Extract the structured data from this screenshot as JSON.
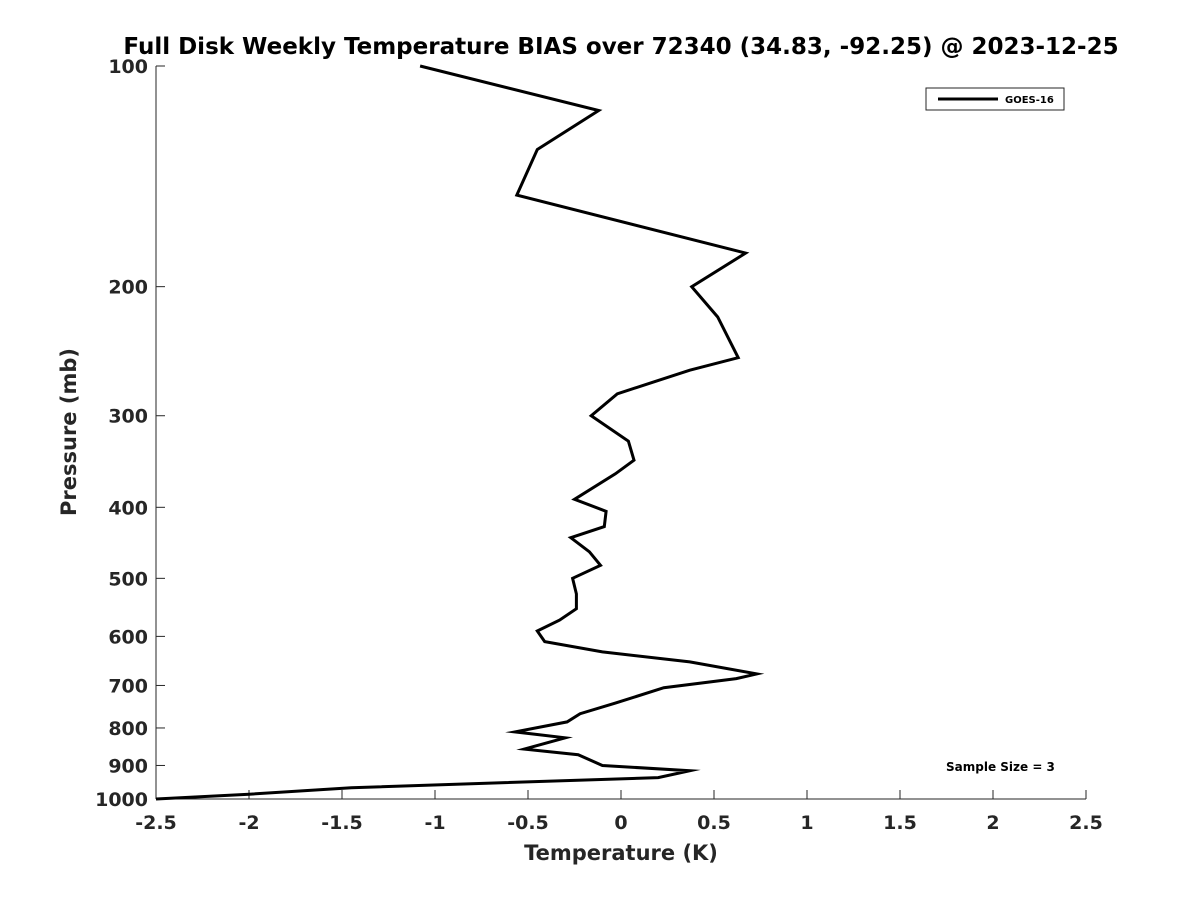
{
  "chart_data": {
    "type": "line",
    "title": "Full Disk Weekly Temperature BIAS over 72340 (34.83, -92.25) @ 2023-12-25",
    "xlabel": "Temperature (K)",
    "ylabel": "Pressure (mb)",
    "xlim": [
      -2.5,
      2.5
    ],
    "ylim": [
      1000,
      100
    ],
    "y_scale": "log",
    "y_reversed": true,
    "x_ticks": [
      -2.5,
      -2,
      -1.5,
      -1,
      -0.5,
      0,
      0.5,
      1,
      1.5,
      2,
      2.5
    ],
    "x_tick_labels": [
      "-2.5",
      "-2",
      "-1.5",
      "-1",
      "-0.5",
      "0",
      "0.5",
      "1",
      "1.5",
      "2",
      "2.5"
    ],
    "y_ticks": [
      100,
      200,
      300,
      400,
      500,
      600,
      700,
      800,
      900,
      1000
    ],
    "y_tick_labels": [
      "100",
      "200",
      "300",
      "400",
      "500",
      "600",
      "700",
      "800",
      "900",
      "1000"
    ],
    "grid": false,
    "legend_position": "top-right",
    "series": [
      {
        "name": "GOES-16",
        "color": "#000000",
        "points": [
          {
            "x": -1.08,
            "p": 100
          },
          {
            "x": -0.12,
            "p": 115
          },
          {
            "x": -0.45,
            "p": 130
          },
          {
            "x": -0.56,
            "p": 150
          },
          {
            "x": 0.67,
            "p": 180
          },
          {
            "x": 0.38,
            "p": 200
          },
          {
            "x": 0.52,
            "p": 220
          },
          {
            "x": 0.63,
            "p": 250
          },
          {
            "x": 0.37,
            "p": 260
          },
          {
            "x": -0.02,
            "p": 280
          },
          {
            "x": -0.16,
            "p": 300
          },
          {
            "x": 0.04,
            "p": 325
          },
          {
            "x": 0.07,
            "p": 345
          },
          {
            "x": -0.03,
            "p": 360
          },
          {
            "x": -0.25,
            "p": 390
          },
          {
            "x": -0.08,
            "p": 405
          },
          {
            "x": -0.09,
            "p": 425
          },
          {
            "x": -0.27,
            "p": 440
          },
          {
            "x": -0.17,
            "p": 460
          },
          {
            "x": -0.11,
            "p": 480
          },
          {
            "x": -0.26,
            "p": 500
          },
          {
            "x": -0.24,
            "p": 525
          },
          {
            "x": -0.24,
            "p": 550
          },
          {
            "x": -0.33,
            "p": 570
          },
          {
            "x": -0.45,
            "p": 590
          },
          {
            "x": -0.41,
            "p": 610
          },
          {
            "x": -0.1,
            "p": 630
          },
          {
            "x": 0.37,
            "p": 650
          },
          {
            "x": 0.73,
            "p": 675
          },
          {
            "x": 0.62,
            "p": 685
          },
          {
            "x": 0.23,
            "p": 705
          },
          {
            "x": -0.03,
            "p": 740
          },
          {
            "x": -0.22,
            "p": 765
          },
          {
            "x": -0.29,
            "p": 785
          },
          {
            "x": -0.57,
            "p": 810
          },
          {
            "x": -0.3,
            "p": 825
          },
          {
            "x": -0.52,
            "p": 855
          },
          {
            "x": -0.23,
            "p": 870
          },
          {
            "x": -0.1,
            "p": 900
          },
          {
            "x": 0.37,
            "p": 915
          },
          {
            "x": 0.2,
            "p": 935
          },
          {
            "x": -1.45,
            "p": 965
          },
          {
            "x": -2.0,
            "p": 985
          },
          {
            "x": -2.5,
            "p": 1000
          }
        ]
      }
    ],
    "annotations": [
      {
        "text": "Sample Size = 3",
        "position": "bottom-right"
      }
    ]
  }
}
